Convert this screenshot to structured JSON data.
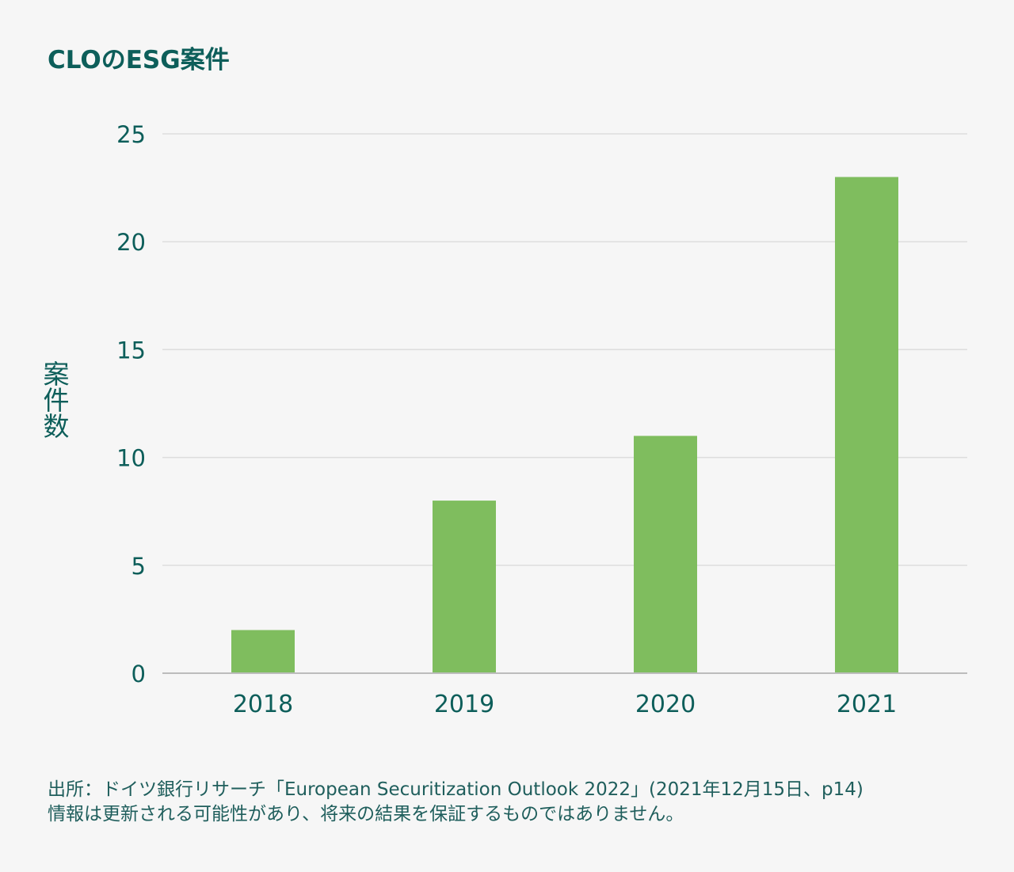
{
  "chart_data": {
    "type": "bar",
    "title": "CLOのESG案件",
    "ylabel": "案件数",
    "xlabel": "",
    "categories": [
      "2018",
      "2019",
      "2020",
      "2021"
    ],
    "values": [
      2,
      8,
      11,
      23
    ],
    "ylim": [
      0,
      25
    ],
    "yticks": [
      0,
      5,
      10,
      15,
      20,
      25
    ],
    "grid": true,
    "bar_color": "#7fbd5e",
    "grid_color": "#dddddd",
    "axis_color": "#bcbcbc",
    "text_color": "#0d5e5a"
  },
  "footnote": {
    "line1": "出所：ドイツ銀行リサーチ「European Securitization Outlook 2022」(2021年12月15日、p14)",
    "line2": "情報は更新される可能性があり、将来の結果を保証するものではありません。"
  }
}
